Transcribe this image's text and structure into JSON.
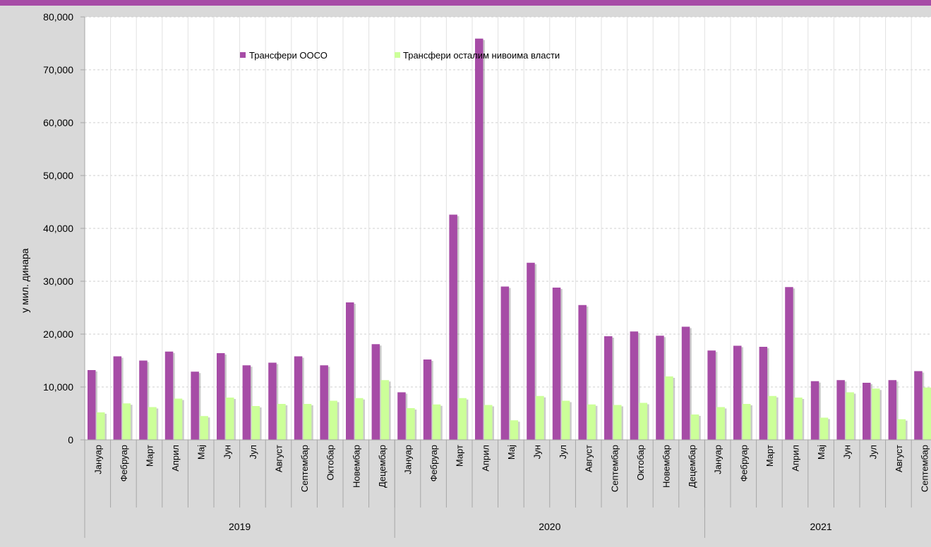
{
  "colors": {
    "accent": "#a64ca6",
    "series_1": "#a64ca6",
    "series_2": "#ccff99",
    "plot_bg": "#ffffff",
    "frame_bg": "#d9d9d9"
  },
  "chart_data": {
    "type": "bar",
    "ylabel": "у мил. динара",
    "ylim": [
      0,
      80000
    ],
    "yticks": [
      "0",
      "10,000",
      "20,000",
      "30,000",
      "40,000",
      "50,000",
      "60,000",
      "70,000",
      "80,000"
    ],
    "ytick_values": [
      0,
      10000,
      20000,
      30000,
      40000,
      50000,
      60000,
      70000,
      80000
    ],
    "grid": true,
    "legend_position": "top-center",
    "categories": [
      "Јануар",
      "Фебруар",
      "Март",
      "Април",
      "Мај",
      "Јун",
      "Јул",
      "Август",
      "Септембар",
      "Октобар",
      "Новембар",
      "Децембар",
      "Јануар",
      "Фебруар",
      "Март",
      "Април",
      "Мај",
      "Јун",
      "Јул",
      "Август",
      "Септембар",
      "Октобар",
      "Новембар",
      "Децембар",
      "Јануар",
      "Фебруар",
      "Март",
      "Април",
      "Мај",
      "Јун",
      "Јул",
      "Август",
      "Септембар"
    ],
    "groups": [
      {
        "label": "2019",
        "count": 12
      },
      {
        "label": "2020",
        "count": 12
      },
      {
        "label": "2021",
        "count": 9
      }
    ],
    "series": [
      {
        "name": "Трансфери ООСО",
        "color": "#a64ca6",
        "values": [
          13200,
          15800,
          15000,
          16700,
          12900,
          16400,
          14100,
          14600,
          15800,
          14100,
          26000,
          18100,
          9000,
          15200,
          42600,
          75900,
          29000,
          33500,
          28800,
          25500,
          19600,
          20500,
          19700,
          21400,
          16900,
          17800,
          17600,
          28900,
          11100,
          11300,
          10800,
          11300,
          13000
        ]
      },
      {
        "name": "Трансфери осталим нивоима власти",
        "color": "#ccff99",
        "values": [
          5200,
          6900,
          6200,
          7800,
          4500,
          8000,
          6400,
          6800,
          6800,
          7400,
          7900,
          11300,
          6000,
          6700,
          7900,
          6600,
          3700,
          8300,
          7400,
          6700,
          6600,
          7000,
          12000,
          4800,
          6200,
          6800,
          8300,
          8000,
          4200,
          9000,
          9700,
          3900,
          9900
        ]
      }
    ]
  }
}
